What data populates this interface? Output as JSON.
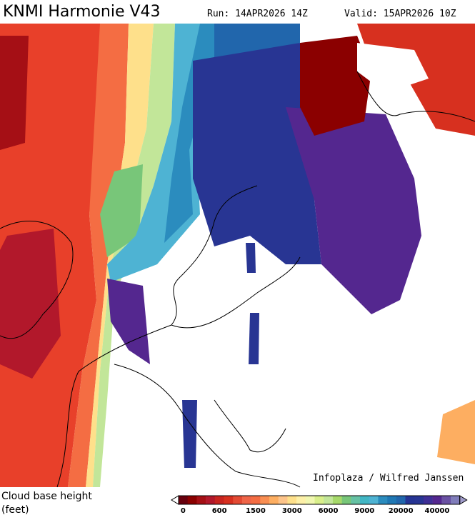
{
  "header": {
    "title": "KNMI Harmonie V43",
    "run": "Run: 14APR2026 14Z",
    "valid": "Valid: 15APR2026 10Z"
  },
  "credit": "Infoplaza / Wilfred Janssen",
  "legend": {
    "title": "Cloud base height",
    "unit": "(feet)",
    "colors": [
      "#67000d",
      "#8b0000",
      "#a50f15",
      "#b2182b",
      "#c8241f",
      "#d7301f",
      "#e34a33",
      "#ef6548",
      "#f46d43",
      "#f98e52",
      "#fdae61",
      "#fdc48a",
      "#fee08b",
      "#fdf0a8",
      "#f1f7b0",
      "#d9ef8b",
      "#c2e699",
      "#a6d96a",
      "#78c679",
      "#66c2a4",
      "#41b6c4",
      "#4eb3d3",
      "#2b8cbe",
      "#1f78b4",
      "#2166ac",
      "#253494",
      "#283593",
      "#3f2f96",
      "#54278f",
      "#6a51a3",
      "#807dba"
    ],
    "ticks": [
      0,
      600,
      1500,
      3000,
      6000,
      9000,
      20000,
      40000
    ]
  }
}
